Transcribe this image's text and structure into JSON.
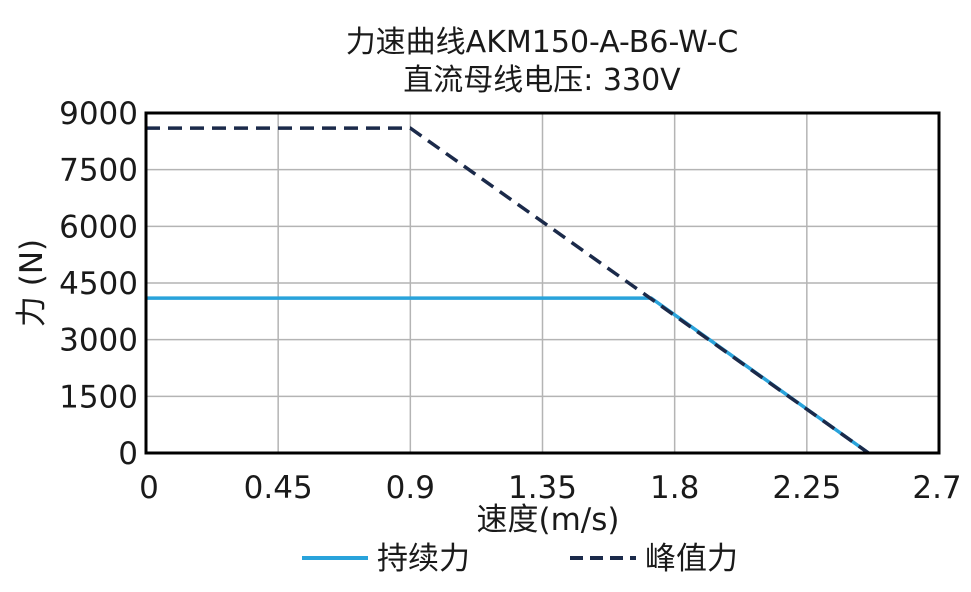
{
  "chart_data": {
    "type": "line",
    "title": "力速曲线AKM150-A-B6-W-C",
    "subtitle": "直流母线电压: 330V",
    "xlabel": "速度(m/s)",
    "ylabel": "力 (N)",
    "xlim": [
      0,
      2.7
    ],
    "ylim": [
      0,
      9000
    ],
    "xticks": [
      0,
      0.45,
      0.9,
      1.35,
      1.8,
      2.25,
      2.7
    ],
    "xtick_labels": [
      "0",
      "0.45",
      "0.9",
      "1.35",
      "1.8",
      "2.25",
      "2.7"
    ],
    "yticks": [
      0,
      1500,
      3000,
      4500,
      6000,
      7500,
      9000
    ],
    "ytick_labels": [
      "0",
      "1500",
      "3000",
      "4500",
      "6000",
      "7500",
      "9000"
    ],
    "grid": true,
    "legend_position": "bottom",
    "series": [
      {
        "name": "持续力",
        "color": "#29a3db",
        "style": "solid",
        "x": [
          0,
          1.72,
          2.46
        ],
        "y": [
          4100,
          4100,
          0
        ]
      },
      {
        "name": "峰值力",
        "color": "#1b2a4a",
        "style": "dashed",
        "x": [
          0,
          0.9,
          2.46
        ],
        "y": [
          8600,
          8600,
          0
        ]
      }
    ]
  }
}
